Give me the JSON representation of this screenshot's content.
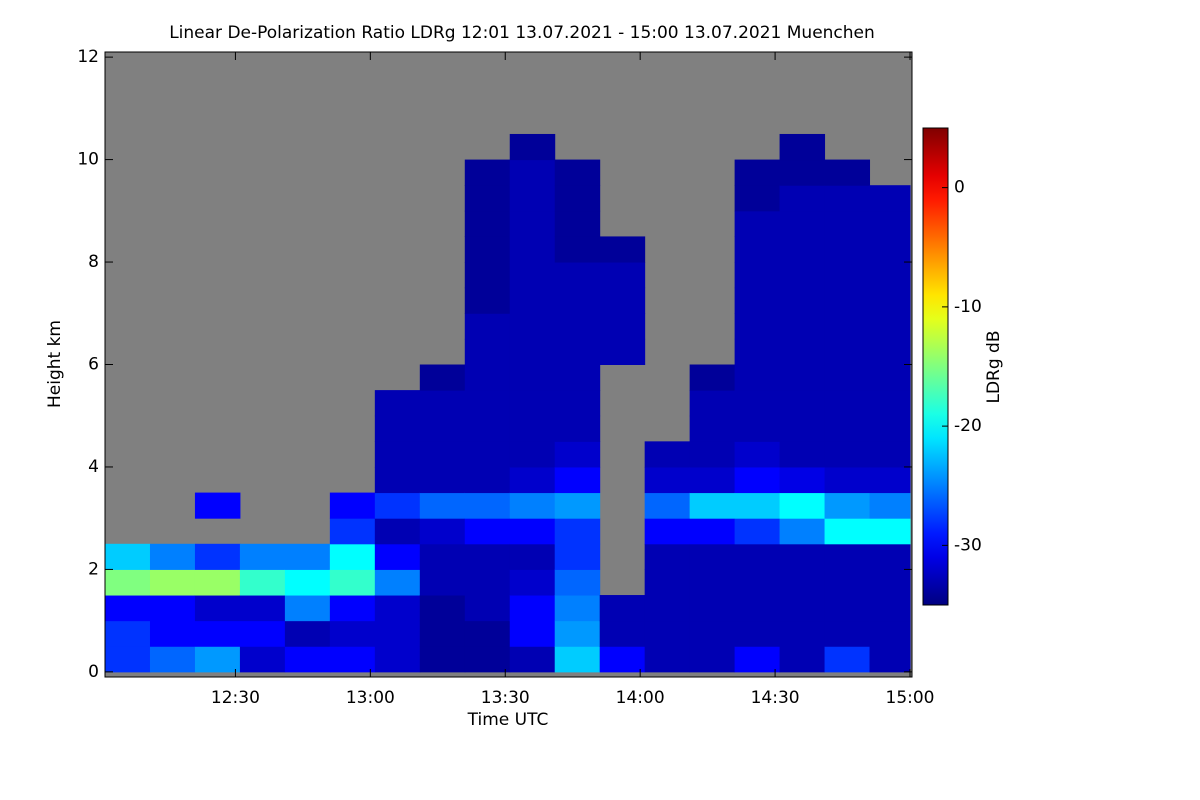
{
  "chart_data": {
    "type": "heatmap",
    "title": "Linear De-Polarization Ratio LDRg   12:01 13.07.2021 - 15:00 13.07.2021 Muenchen",
    "x_label": "Time UTC",
    "y_label": "Height km",
    "colorbar_label": "LDRg dB",
    "colormap": "jet",
    "missing_color": "#808080",
    "xlim": [
      "12:01",
      "15:00"
    ],
    "xticks": [
      "12:30",
      "13:00",
      "13:30",
      "14:00",
      "14:30",
      "15:00"
    ],
    "ylim": [
      -0.1,
      12.1
    ],
    "yticks": [
      0,
      2,
      4,
      6,
      8,
      10,
      12
    ],
    "zlim": [
      -35,
      5
    ],
    "zticks": [
      0,
      -10,
      -20,
      -30
    ],
    "x": [
      "12:01",
      "12:11",
      "12:21",
      "12:31",
      "12:41",
      "12:51",
      "13:01",
      "13:11",
      "13:21",
      "13:31",
      "13:41",
      "13:51",
      "14:01",
      "14:11",
      "14:21",
      "14:31",
      "14:41",
      "14:51"
    ],
    "y": [
      0,
      0.5,
      1,
      1.5,
      2,
      2.5,
      3,
      3.5,
      4,
      4.5,
      5,
      5.5,
      6,
      6.5,
      7,
      7.5,
      8,
      8.5,
      9,
      9.5,
      10
    ],
    "z": [
      [
        -28,
        -28,
        -30,
        -15,
        -22,
        null,
        null,
        null,
        null,
        null,
        null,
        null,
        null,
        null,
        null,
        null,
        null,
        null,
        null,
        null,
        null
      ],
      [
        -26,
        -30,
        -30,
        -14,
        -25,
        null,
        null,
        null,
        null,
        null,
        null,
        null,
        null,
        null,
        null,
        null,
        null,
        null,
        null,
        null,
        null
      ],
      [
        -24,
        -30,
        -32,
        -14,
        -28,
        null,
        -30,
        null,
        null,
        null,
        null,
        null,
        null,
        null,
        null,
        null,
        null,
        null,
        null,
        null,
        null
      ],
      [
        -32,
        -30,
        -32,
        -18,
        -25,
        null,
        null,
        null,
        null,
        null,
        null,
        null,
        null,
        null,
        null,
        null,
        null,
        null,
        null,
        null,
        null
      ],
      [
        -30,
        -33,
        -25,
        -20,
        -25,
        null,
        null,
        null,
        null,
        null,
        null,
        null,
        null,
        null,
        null,
        null,
        null,
        null,
        null,
        null,
        null
      ],
      [
        -30,
        -32,
        -30,
        -18,
        -20,
        -28,
        -30,
        null,
        null,
        null,
        null,
        null,
        null,
        null,
        null,
        null,
        null,
        null,
        null,
        null,
        null
      ],
      [
        -32,
        -32,
        -32,
        -25,
        -30,
        -33,
        -28,
        -33,
        -33,
        -33,
        -33,
        null,
        null,
        null,
        null,
        null,
        null,
        null,
        null,
        null,
        null
      ],
      [
        -34,
        -34,
        -34,
        -33,
        -33,
        -32,
        -26,
        -33,
        -33,
        -33,
        -33,
        -34,
        null,
        null,
        null,
        null,
        null,
        null,
        null,
        null,
        null
      ],
      [
        -34,
        -34,
        -33,
        -33,
        -33,
        -30,
        -26,
        -33,
        -33,
        -33,
        -33,
        -33,
        -33,
        -33,
        -34,
        -34,
        -34,
        -34,
        -34,
        -34,
        null
      ],
      [
        -33,
        -30,
        -30,
        -32,
        -33,
        -30,
        -25,
        -32,
        -33,
        -33,
        -33,
        -33,
        -33,
        -33,
        -33,
        -33,
        -33,
        -33,
        -33,
        -33,
        -34
      ],
      [
        -22,
        -24,
        -25,
        -26,
        -28,
        -28,
        -24,
        -30,
        -32,
        -33,
        -33,
        -33,
        -33,
        -33,
        -33,
        -33,
        -34,
        -34,
        -34,
        -34,
        null
      ],
      [
        -30,
        -33,
        -33,
        null,
        null,
        null,
        null,
        null,
        null,
        null,
        null,
        null,
        -33,
        -33,
        -33,
        -33,
        -34,
        null,
        null,
        null,
        null
      ],
      [
        -33,
        -33,
        -33,
        -33,
        -33,
        -30,
        -26,
        -32,
        -33,
        null,
        null,
        null,
        null,
        null,
        null,
        null,
        null,
        null,
        null,
        null,
        null
      ],
      [
        -33,
        -33,
        -33,
        -33,
        -33,
        -30,
        -22,
        -32,
        -33,
        -33,
        -33,
        -34,
        null,
        null,
        null,
        null,
        null,
        null,
        null,
        null,
        null
      ],
      [
        -30,
        -33,
        -33,
        -33,
        -33,
        -28,
        -22,
        -30,
        -32,
        -33,
        -33,
        -33,
        -33,
        -33,
        -33,
        -33,
        -33,
        -33,
        -34,
        -34,
        null
      ],
      [
        -33,
        -33,
        -33,
        -33,
        -33,
        -25,
        -20,
        -31,
        -33,
        -33,
        -33,
        -33,
        -33,
        -33,
        -33,
        -33,
        -33,
        -33,
        -33,
        -34,
        -34
      ],
      [
        -28,
        -33,
        -33,
        -33,
        -33,
        -20,
        -24,
        -32,
        -33,
        -33,
        -33,
        -33,
        -33,
        -33,
        -33,
        -33,
        -33,
        -33,
        -33,
        -34,
        null
      ],
      [
        -33,
        -33,
        -33,
        -33,
        -33,
        -20,
        -25,
        -32,
        -33,
        -33,
        -33,
        -33,
        -33,
        -33,
        -33,
        -33,
        -33,
        -33,
        -33,
        null,
        null
      ]
    ]
  }
}
